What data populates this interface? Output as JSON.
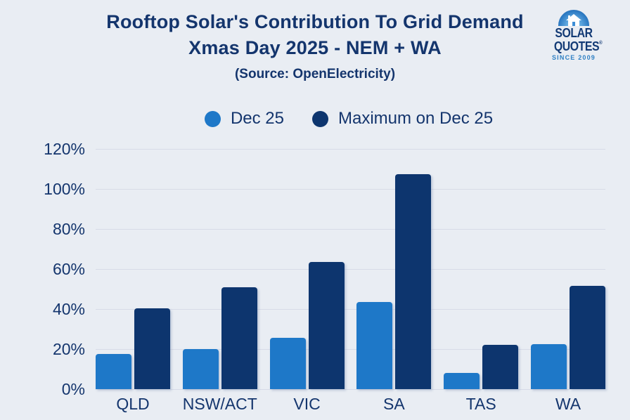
{
  "header": {
    "title_line1": "Rooftop Solar's Contribution To Grid Demand",
    "title_line2": "Xmas Day 2025 - NEM + WA",
    "source": "(Source: OpenElectricity)"
  },
  "logo": {
    "line1": "SOLAR",
    "line2": "QUOTES",
    "registered": "®",
    "tagline": "SINCE 2009"
  },
  "legend": {
    "items": [
      {
        "label": "Dec 25",
        "color": "#1e78c8"
      },
      {
        "label": "Maximum on Dec 25",
        "color": "#0d356e"
      }
    ]
  },
  "chart_data": {
    "type": "bar",
    "title": "Rooftop Solar's Contribution To Grid Demand Xmas Day 2025 - NEM + WA",
    "subtitle": "(Source: OpenElectricity)",
    "categories": [
      "QLD",
      "NSW/ACT",
      "VIC",
      "SA",
      "TAS",
      "WA"
    ],
    "series": [
      {
        "name": "Dec 25",
        "color": "#1e78c8",
        "values": [
          17.5,
          20,
          25.5,
          43.5,
          8,
          22.5
        ]
      },
      {
        "name": "Maximum on Dec 25",
        "color": "#0d356e",
        "values": [
          40.5,
          51,
          63.5,
          107.5,
          22,
          51.5
        ]
      }
    ],
    "xlabel": "",
    "ylabel": "",
    "y_ticks": [
      "0%",
      "20%",
      "40%",
      "60%",
      "80%",
      "100%",
      "120%"
    ],
    "ylim": [
      0,
      120
    ],
    "grid": true,
    "legend_position": "top",
    "units": "percent of grid demand"
  },
  "colors": {
    "background": "#e9edf3",
    "text_navy": "#14356d",
    "gridline": "#d7dbe7",
    "series_light": "#1e78c8",
    "series_dark": "#0d356e",
    "logo_tagline": "#2f80c4"
  }
}
